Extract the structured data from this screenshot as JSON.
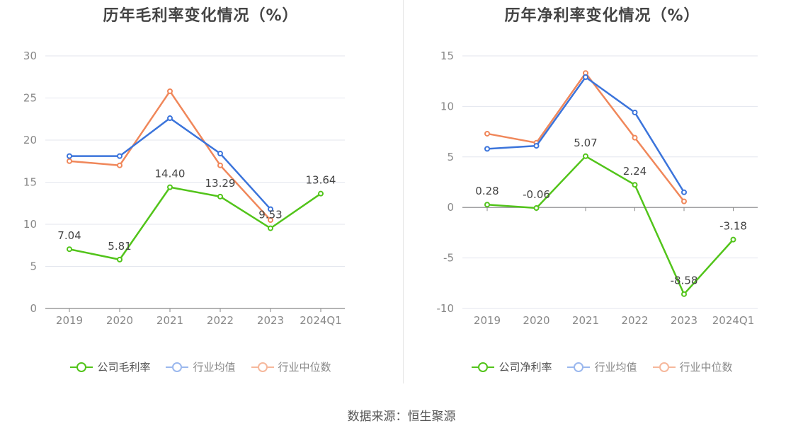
{
  "source_text": "数据来源：恒生聚源",
  "chart_data": [
    {
      "type": "line",
      "title": "历年毛利率变化情况（%）",
      "categories": [
        "2019",
        "2020",
        "2021",
        "2022",
        "2023",
        "2024Q1"
      ],
      "ylim": [
        0,
        30
      ],
      "yticks": [
        "0",
        "5",
        "10",
        "15",
        "20",
        "25",
        "30"
      ],
      "grid": true,
      "legend_position": "bottom",
      "series": [
        {
          "name": "公司毛利率",
          "color": "#52c41a",
          "values": [
            7.04,
            5.81,
            14.4,
            13.29,
            9.53,
            13.64
          ],
          "labels": [
            "7.04",
            "5.81",
            "14.40",
            "13.29",
            "9.53",
            "13.64"
          ]
        },
        {
          "name": "行业均值",
          "color": "#3b74db",
          "values": [
            18.1,
            18.1,
            22.6,
            18.4,
            11.8,
            null
          ]
        },
        {
          "name": "行业中位数",
          "color": "#f0875a",
          "values": [
            17.5,
            17.0,
            25.8,
            17.0,
            10.5,
            null
          ]
        }
      ]
    },
    {
      "type": "line",
      "title": "历年净利率变化情况（%）",
      "categories": [
        "2019",
        "2020",
        "2021",
        "2022",
        "2023",
        "2024Q1"
      ],
      "ylim": [
        -10,
        15
      ],
      "yticks": [
        "-10",
        "-5",
        "0",
        "5",
        "10",
        "15"
      ],
      "grid": true,
      "legend_position": "bottom",
      "series": [
        {
          "name": "公司净利率",
          "color": "#52c41a",
          "values": [
            0.28,
            -0.06,
            5.07,
            2.24,
            -8.58,
            -3.18
          ],
          "labels": [
            "0.28",
            "-0.06",
            "5.07",
            "2.24",
            "-8.58",
            "-3.18"
          ]
        },
        {
          "name": "行业均值",
          "color": "#3b74db",
          "values": [
            5.8,
            6.1,
            12.9,
            9.4,
            1.5,
            null
          ]
        },
        {
          "name": "行业中位数",
          "color": "#f0875a",
          "values": [
            7.3,
            6.4,
            13.3,
            6.9,
            0.6,
            null
          ]
        }
      ]
    }
  ]
}
